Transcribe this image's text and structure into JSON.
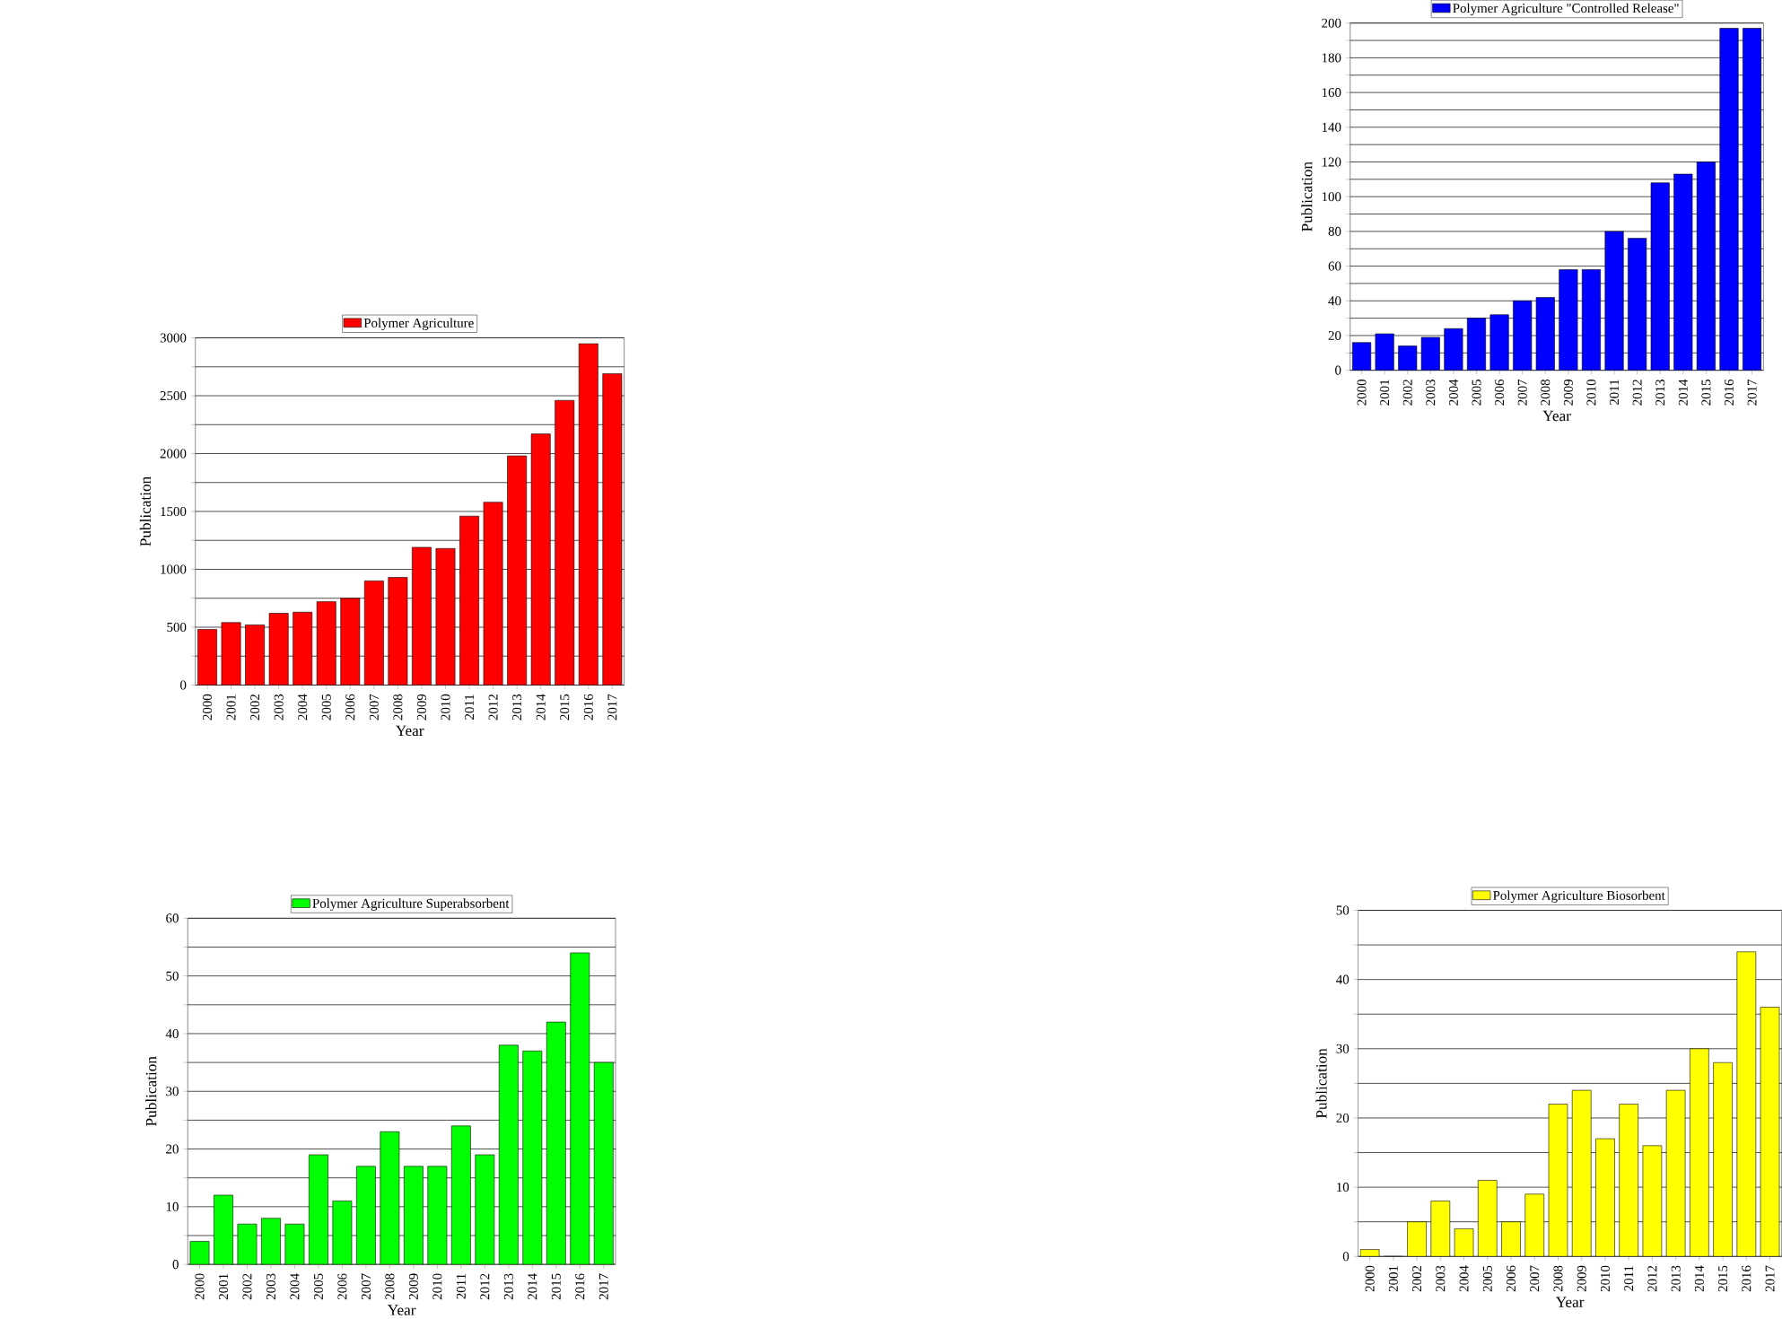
{
  "chart_data": [
    {
      "type": "bar",
      "legend": "top",
      "grid": "y",
      "xlabel": "Year",
      "ylabel": "Publication",
      "categories": [
        "2000",
        "2001",
        "2002",
        "2003",
        "2004",
        "2005",
        "2006",
        "2007",
        "2008",
        "2009",
        "2010",
        "2011",
        "2012",
        "2013",
        "2014",
        "2015",
        "2016",
        "2017"
      ],
      "series": [
        {
          "name": "Polymer Agriculture",
          "color": "#ff0000",
          "values": [
            480,
            540,
            520,
            620,
            630,
            720,
            750,
            900,
            930,
            1190,
            1180,
            1460,
            1580,
            1980,
            2170,
            2460,
            2950,
            2690
          ]
        }
      ],
      "ylim": [
        0,
        3000
      ],
      "yticks": [
        0,
        {
          "value": 250,
          "label": null
        },
        500,
        {
          "value": 750,
          "label": null
        },
        1000,
        {
          "value": 1250,
          "label": null
        },
        1500,
        {
          "value": 1750,
          "label": null
        },
        2000,
        {
          "value": 2250,
          "label": null
        },
        2500,
        {
          "value": 2750,
          "label": null
        },
        3000
      ]
    },
    {
      "type": "bar",
      "legend": "top",
      "grid": "y",
      "xlabel": "Year",
      "ylabel": "Publication",
      "categories": [
        "2000",
        "2001",
        "2002",
        "2003",
        "2004",
        "2005",
        "2006",
        "2007",
        "2008",
        "2009",
        "2010",
        "2011",
        "2012",
        "2013",
        "2014",
        "2015",
        "2016",
        "2017"
      ],
      "series": [
        {
          "name": "Polymer Agriculture \"Controlled Release\"",
          "color": "#0000ff",
          "values": [
            16,
            21,
            14,
            19,
            24,
            30,
            32,
            40,
            42,
            58,
            58,
            80,
            76,
            108,
            113,
            120,
            197,
            197
          ]
        }
      ],
      "ylim": [
        0,
        200
      ],
      "yticks": [
        0,
        {
          "value": 10,
          "label": null
        },
        20,
        {
          "value": 30,
          "label": null
        },
        40,
        {
          "value": 50,
          "label": null
        },
        60,
        {
          "value": 70,
          "label": null
        },
        80,
        {
          "value": 90,
          "label": null
        },
        100,
        {
          "value": 110,
          "label": null
        },
        120,
        {
          "value": 130,
          "label": null
        },
        140,
        {
          "value": 150,
          "label": null
        },
        160,
        {
          "value": 170,
          "label": null
        },
        180,
        {
          "value": 190,
          "label": null
        },
        200
      ]
    },
    {
      "type": "bar",
      "legend": "top",
      "grid": "y",
      "xlabel": "Year",
      "ylabel": "Publication",
      "categories": [
        "2000",
        "2001",
        "2002",
        "2003",
        "2004",
        "2005",
        "2006",
        "2007",
        "2008",
        "2009",
        "2010",
        "2011",
        "2012",
        "2013",
        "2014",
        "2015",
        "2016",
        "2017"
      ],
      "series": [
        {
          "name": "Polymer Agriculture Superabsorbent",
          "color": "#00ff00",
          "values": [
            4,
            12,
            7,
            8,
            7,
            19,
            11,
            17,
            23,
            17,
            17,
            24,
            19,
            38,
            37,
            42,
            54,
            35
          ]
        }
      ],
      "ylim": [
        0,
        60
      ],
      "yticks": [
        0,
        {
          "value": 5,
          "label": null
        },
        10,
        {
          "value": 15,
          "label": null
        },
        20,
        {
          "value": 25,
          "label": null
        },
        30,
        {
          "value": 35,
          "label": null
        },
        40,
        {
          "value": 45,
          "label": null
        },
        50,
        {
          "value": 55,
          "label": null
        },
        60
      ]
    },
    {
      "type": "bar",
      "legend": "top",
      "grid": "y",
      "xlabel": "Year",
      "ylabel": "Publication",
      "categories": [
        "2000",
        "2001",
        "2002",
        "2003",
        "2004",
        "2005",
        "2006",
        "2007",
        "2008",
        "2009",
        "2010",
        "2011",
        "2012",
        "2013",
        "2014",
        "2015",
        "2016",
        "2017"
      ],
      "series": [
        {
          "name": "Polymer Agriculture Biosorbent",
          "color": "#ffff00",
          "values": [
            1,
            0,
            5,
            8,
            4,
            11,
            5,
            9,
            22,
            24,
            17,
            22,
            16,
            24,
            30,
            28,
            44,
            36
          ]
        }
      ],
      "ylim": [
        0,
        50
      ],
      "yticks": [
        0,
        {
          "value": 5,
          "label": null
        },
        10,
        {
          "value": 15,
          "label": null
        },
        20,
        {
          "value": 25,
          "label": null
        },
        30,
        {
          "value": 35,
          "label": null
        },
        40,
        {
          "value": 45,
          "label": null
        },
        50
      ]
    }
  ]
}
